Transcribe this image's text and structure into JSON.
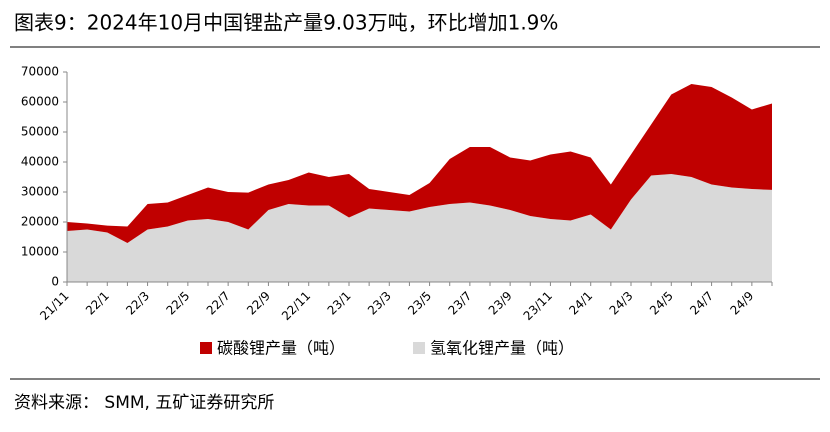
{
  "chart_data": {
    "type": "stacked-area",
    "title": "图表9：2024年10月中国锂盐产量9.03万吨，环比增加1.9%",
    "source": "资料来源： SMM, 五矿证券研究所",
    "categories": [
      "21/11",
      null,
      "22/1",
      null,
      "22/3",
      null,
      "22/5",
      null,
      "22/7",
      null,
      "22/9",
      null,
      "22/11",
      null,
      "23/1",
      null,
      "23/3",
      null,
      "23/5",
      null,
      "23/7",
      null,
      "23/9",
      null,
      "23/11",
      null,
      "24/1",
      null,
      "24/3",
      null,
      "24/5",
      null,
      "24/7",
      null,
      "24/9",
      null
    ],
    "series": [
      {
        "name": "碳酸锂产量（吨）",
        "color": "#c00000",
        "values": [
          3000,
          2000,
          2300,
          5500,
          8500,
          8000,
          8500,
          10500,
          10000,
          12300,
          8500,
          8000,
          11000,
          9500,
          14500,
          6500,
          6000,
          5500,
          8000,
          15000,
          18500,
          19500,
          17500,
          18500,
          21500,
          23000,
          19000,
          15000,
          15000,
          17000,
          26500,
          31000,
          32500,
          30000,
          26500,
          28800
        ]
      },
      {
        "name": "氢氧化锂产量（吨）",
        "color": "#d9d9d9",
        "values": [
          17000,
          17500,
          16500,
          13000,
          17500,
          18500,
          20500,
          21000,
          20000,
          17500,
          24000,
          26000,
          25500,
          25500,
          21500,
          24500,
          24000,
          23500,
          25000,
          26000,
          26500,
          25500,
          24000,
          22000,
          21000,
          20500,
          22500,
          17500,
          27500,
          35500,
          36000,
          35000,
          32500,
          31500,
          31000,
          30700
        ]
      }
    ],
    "ylim": [
      0,
      70000
    ],
    "yticks": [
      0,
      10000,
      20000,
      30000,
      40000,
      50000,
      60000,
      70000
    ],
    "grid": false
  }
}
